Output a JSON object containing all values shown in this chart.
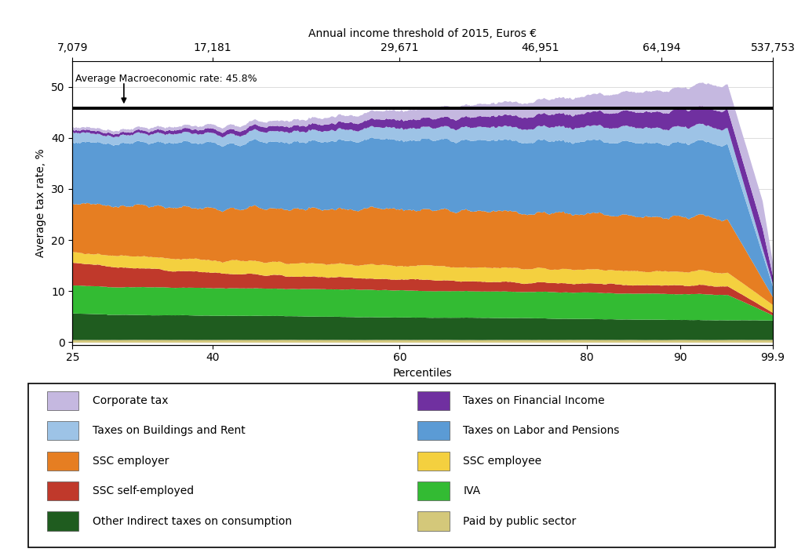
{
  "avg_macro_rate": 45.8,
  "ylabel": "Average tax rate, %",
  "xlabel": "Percentiles",
  "top_xlabel": "Annual income threshold of 2015, Euros €",
  "xticks": [
    25,
    40,
    60,
    80,
    90,
    99.9
  ],
  "xtick_labels": [
    "25",
    "40",
    "60",
    "80",
    "90",
    "99.9"
  ],
  "yticks": [
    0,
    10,
    20,
    30,
    40,
    50
  ],
  "ylim": [
    -0.5,
    55
  ],
  "top_xticks_pos": [
    25,
    40,
    60,
    75,
    88,
    99.9
  ],
  "top_xtick_labels": [
    "7,079",
    "17,181",
    "29,671",
    "46,951",
    "64,194",
    "537,753"
  ],
  "annotation_text": "Average Macroeconomic rate: 45.8%",
  "colors": {
    "paid_pub": "#d4c87a",
    "other_ind": "#1f5c1f",
    "iva": "#33bb33",
    "ssc_self": "#c0392b",
    "ssc_emp": "#f4d03f",
    "ssc_empr": "#e67e22",
    "labor": "#5b9bd5",
    "buildings": "#9dc3e6",
    "financial": "#7030a0",
    "corporate": "#c5b8e0"
  },
  "legend_left": [
    [
      "Corporate tax",
      "#c5b8e0"
    ],
    [
      "Taxes on Buildings and Rent",
      "#9dc3e6"
    ],
    [
      "SSC employer",
      "#e67e22"
    ],
    [
      "SSC self-employed",
      "#c0392b"
    ],
    [
      "Other Indirect taxes on consumption",
      "#1f5c1f"
    ]
  ],
  "legend_right": [
    [
      "Taxes on Financial Income",
      "#7030a0"
    ],
    [
      "Taxes on Labor and Pensions",
      "#5b9bd5"
    ],
    [
      "SSC employee",
      "#f4d03f"
    ],
    [
      "IVA",
      "#33bb33"
    ],
    [
      "Paid by public sector",
      "#d4c87a"
    ]
  ]
}
